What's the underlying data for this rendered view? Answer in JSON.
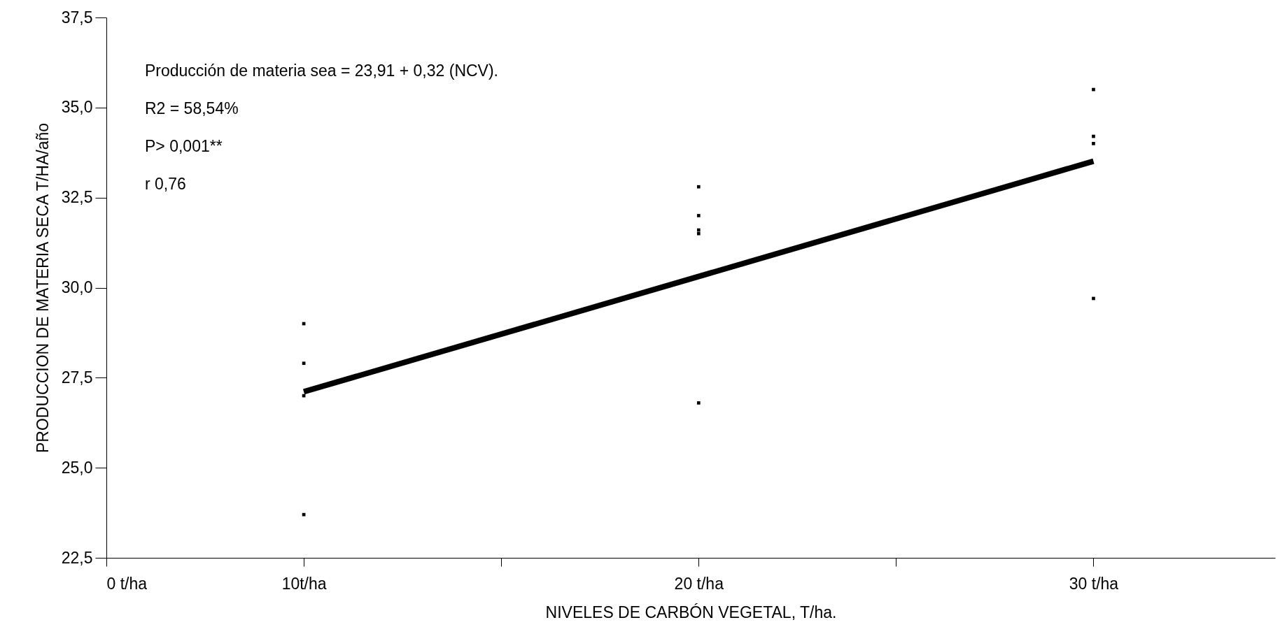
{
  "chart_data": {
    "type": "scatter",
    "xlabel": "NIVELES DE  CARBÓN VEGETAL, T/ha.",
    "ylabel": "PRODUCCION DE MATERIA SECA T/HA/año",
    "xlim": [
      5,
      34.6
    ],
    "ylim": [
      22.5,
      37.5
    ],
    "xticks": [
      {
        "value": 5,
        "label": "0 t/ha"
      },
      {
        "value": 10,
        "label": "10t/ha"
      },
      {
        "value": 15,
        "label": null
      },
      {
        "value": 20,
        "label": "20 t/ha"
      },
      {
        "value": 25,
        "label": null
      },
      {
        "value": 30,
        "label": "30 t/ha"
      }
    ],
    "yticks": [
      {
        "value": 22.5,
        "label": "22,5"
      },
      {
        "value": 25,
        "label": "25,0"
      },
      {
        "value": 27.5,
        "label": "27,5"
      },
      {
        "value": 30,
        "label": "30,0"
      },
      {
        "value": 32.5,
        "label": "32,5"
      },
      {
        "value": 35,
        "label": "35,0"
      },
      {
        "value": 37.5,
        "label": "37,5"
      }
    ],
    "grid": false,
    "marker": "square",
    "series": [
      {
        "color": "#000000",
        "x": [
          10,
          10,
          10,
          10,
          20,
          20,
          20,
          20,
          20,
          30,
          30,
          30,
          30
        ],
        "values": [
          29.0,
          27.9,
          27.0,
          23.7,
          32.8,
          32.0,
          31.6,
          31.5,
          26.8,
          35.5,
          34.2,
          34.0,
          29.7
        ]
      },
      {
        "type": "line",
        "marker": "none",
        "color": "#000000",
        "x": [
          10,
          30
        ],
        "values": [
          27.11,
          33.51
        ]
      }
    ],
    "annotations": [
      "Producción de materia sea = 23,91 + 0,32 (NCV).",
      "R2 = 58,54%",
      "P> 0,001**",
      "r  0,76"
    ]
  }
}
